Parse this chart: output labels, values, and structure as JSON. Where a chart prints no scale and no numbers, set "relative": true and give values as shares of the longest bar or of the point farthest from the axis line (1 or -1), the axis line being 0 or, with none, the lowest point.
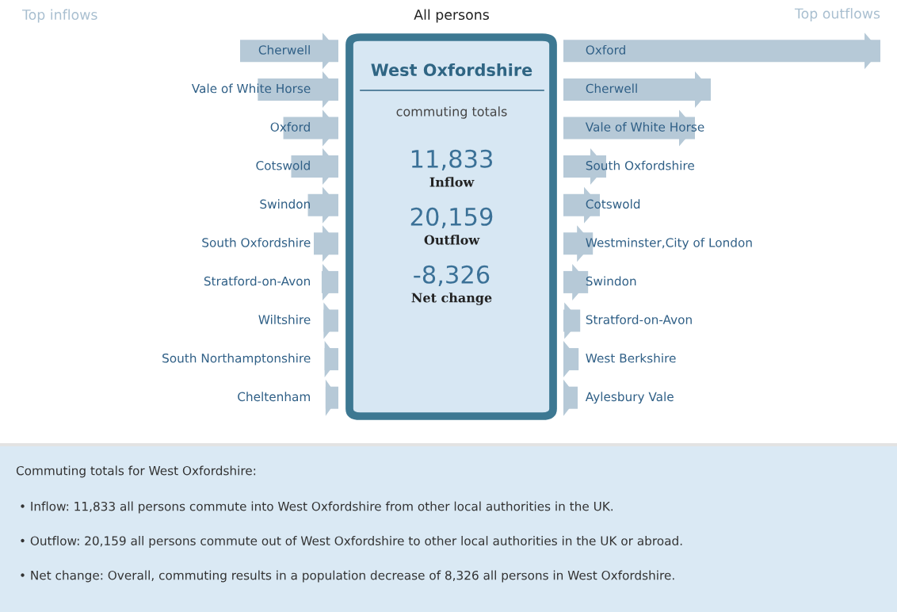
{
  "chart_data": [
    {
      "type": "bar",
      "orientation": "horizontal",
      "relative": true,
      "title": "Top inflows",
      "color": "#b6c9d7",
      "categories": [
        "Cherwell",
        "Vale of White Horse",
        "Oxford",
        "Cotswold",
        "Swindon",
        "South Oxfordshire",
        "Stratford-on-Avon",
        "Wiltshire",
        "South Northamptonshire",
        "Cheltenham"
      ],
      "values": [
        -1,
        -0.82,
        -0.56,
        -0.48,
        -0.31,
        -0.25,
        -0.17,
        -0.15,
        -0.14,
        -0.13
      ]
    },
    {
      "type": "other",
      "title": "All persons",
      "annotations": [
        "West Oxfordshire",
        "commuting totals",
        "11,833",
        "Inflow",
        "20,159",
        "Outflow",
        "-8,326",
        "Net change"
      ]
    },
    {
      "type": "bar",
      "orientation": "horizontal",
      "relative": true,
      "title": "Top outflows",
      "color": "#b6c9d7",
      "categories": [
        "Oxford",
        "Cherwell",
        "Vale of White Horse",
        "South Oxfordshire",
        "Cotswold",
        "Westminster,City of London",
        "Swindon",
        "Stratford-on-Avon",
        "West Berkshire",
        "Aylesbury Vale"
      ],
      "values": [
        1,
        0.465,
        0.415,
        0.135,
        0.115,
        0.093,
        0.078,
        0.053,
        0.048,
        0.045
      ]
    },
    {
      "type": "other",
      "title": "Commuting totals for West Oxfordshire:",
      "annotations": [
        "• Inflow: 11,833 all persons commute into West Oxfordshire from other local authorities in the UK.",
        "• Outflow: 20,159 all persons commute out of West Oxfordshire to other local authorities in the UK or abroad.",
        "• Net change: Overall, commuting results in a population decrease of 8,326 all persons in West Oxfordshire."
      ]
    }
  ]
}
